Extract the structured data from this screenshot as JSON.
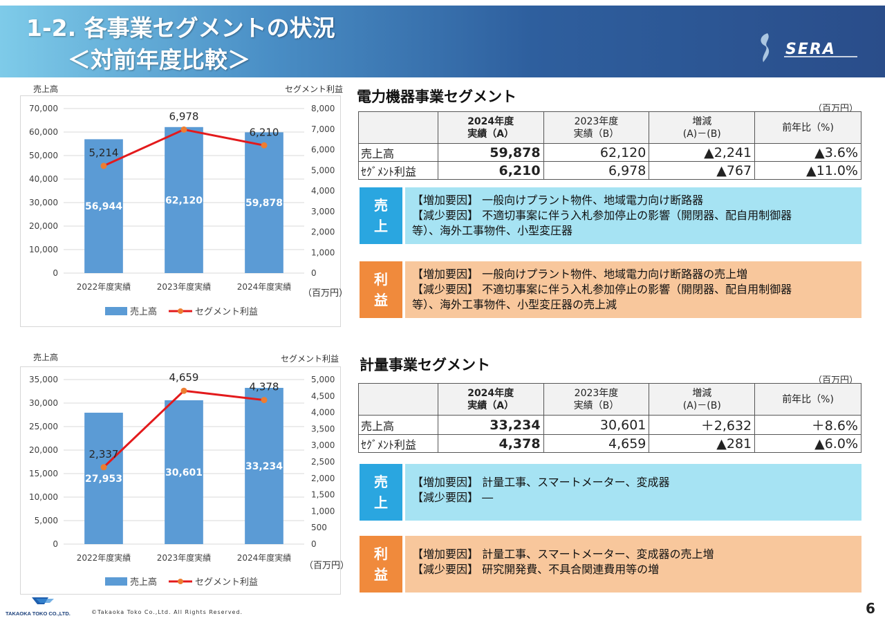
{
  "header": {
    "title_line1": "1-2. 各事業セグメントの状況",
    "title_line2": "＜対前年度比較＞",
    "logo_text": "SERA"
  },
  "charts": {
    "left_axis_label": "売上高",
    "right_axis_label": "セグメント利益",
    "unit": "（百万円）",
    "legend_bar": "売上高",
    "legend_line": "セグメント利益"
  },
  "chart_data": [
    {
      "type": "bar",
      "categories": [
        "2022年度実績",
        "2023年度実績",
        "2024年度実績"
      ],
      "series": [
        {
          "name": "売上高",
          "type": "bar",
          "axis": "left",
          "values": [
            56944,
            62120,
            59878
          ],
          "labels": [
            "56,944",
            "62,120",
            "59,878"
          ]
        },
        {
          "name": "セグメント利益",
          "type": "line",
          "axis": "right",
          "values": [
            5214,
            6978,
            6210
          ],
          "labels": [
            "5,214",
            "6,978",
            "6,210"
          ]
        }
      ],
      "ylim_left": [
        0,
        70000
      ],
      "yticks_left": [
        "70,000",
        "60,000",
        "50,000",
        "40,000",
        "30,000",
        "20,000",
        "10,000",
        "0"
      ],
      "ylim_right": [
        0,
        8000
      ],
      "yticks_right": [
        "8,000",
        "7,000",
        "6,000",
        "5,000",
        "4,000",
        "3,000",
        "2,000",
        "1,000",
        "0"
      ],
      "bar_color": "#5b9bd5",
      "line_color": "#e31a1c",
      "marker_color": "#ed7d31",
      "legend_placement": "bottom"
    },
    {
      "type": "bar",
      "categories": [
        "2022年度実績",
        "2023年度実績",
        "2024年度実績"
      ],
      "series": [
        {
          "name": "売上高",
          "type": "bar",
          "axis": "left",
          "values": [
            27953,
            30601,
            33234
          ],
          "labels": [
            "27,953",
            "30,601",
            "33,234"
          ]
        },
        {
          "name": "セグメント利益",
          "type": "line",
          "axis": "right",
          "values": [
            2337,
            4659,
            4378
          ],
          "labels": [
            "2,337",
            "4,659",
            "4,378"
          ]
        }
      ],
      "ylim_left": [
        0,
        35000
      ],
      "yticks_left": [
        "35,000",
        "30,000",
        "25,000",
        "20,000",
        "15,000",
        "10,000",
        "5,000",
        "0"
      ],
      "ylim_right": [
        0,
        5000
      ],
      "yticks_right": [
        "5,000",
        "4,500",
        "4,000",
        "3,500",
        "3,000",
        "2,500",
        "2,000",
        "1,500",
        "1,000",
        "500",
        "0"
      ],
      "bar_color": "#5b9bd5",
      "line_color": "#e31a1c",
      "marker_color": "#ed7d31",
      "legend_placement": "bottom"
    }
  ],
  "segments": [
    {
      "title": "電力機器事業セグメント",
      "unit": "（百万円）",
      "headers": [
        "2024年度\n実績（A）",
        "2023年度\n実績（B）",
        "増減\n(A)－(B)",
        "前年比（%)"
      ],
      "rows": [
        {
          "label": "売上高",
          "a": "59,878",
          "b": "62,120",
          "diff": "▲2,241",
          "ratio": "▲3.6%"
        },
        {
          "label": "ｾｸﾞﾒﾝﾄ利益",
          "a": "6,210",
          "b": "6,978",
          "diff": "▲767",
          "ratio": "▲11.0%"
        }
      ],
      "sales_tag": "売\n上",
      "sales_lines": [
        "【増加要因】 一般向けプラント物件、地域電力向け断路器",
        "【減少要因】 不適切事案に伴う入札参加停止の影響（開閉器、配自用制御器",
        "等）、海外工事物件、小型変圧器"
      ],
      "profit_tag": "利\n益",
      "profit_lines": [
        "【増加要因】 一般向けプラント物件、地域電力向け断路器の売上増",
        "【減少要因】 不適切事案に伴う入札参加停止の影響（開閉器、配自用制御器",
        "等）、海外工事物件、小型変圧器の売上減"
      ]
    },
    {
      "title": "計量事業セグメント",
      "unit": "（百万円）",
      "headers": [
        "2024年度\n実績（A）",
        "2023年度\n実績（B）",
        "増減\n(A)－(B)",
        "前年比（%)"
      ],
      "rows": [
        {
          "label": "売上高",
          "a": "33,234",
          "b": "30,601",
          "diff": "＋2,632",
          "ratio": "＋8.6%"
        },
        {
          "label": "ｾｸﾞﾒﾝﾄ利益",
          "a": "4,378",
          "b": "4,659",
          "diff": "▲281",
          "ratio": "▲6.0%"
        }
      ],
      "sales_tag": "売\n上",
      "sales_lines": [
        "【増加要因】 計量工事、スマートメーター、変成器",
        "【減少要因】 ―"
      ],
      "profit_tag": "利\n益",
      "profit_lines": [
        "【増加要因】 計量工事、スマートメーター、変成器の売上増",
        "【減少要因】 研究開発費、不具合関連費用等の増"
      ]
    }
  ],
  "footer": {
    "company": "TAKAOKA TOKO CO.,LTD.",
    "copyright": "©Takaoka Toko Co.,Ltd. All Rights Reserved.",
    "page": "6"
  }
}
